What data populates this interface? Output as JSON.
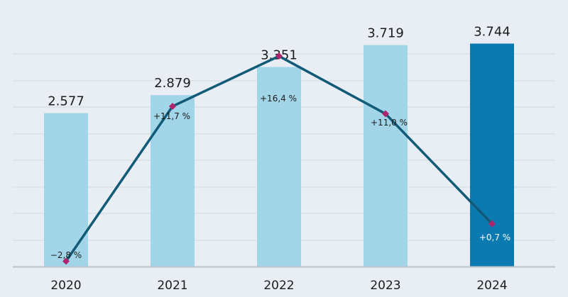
{
  "chart_data": {
    "type": "bar+line",
    "categories": [
      "2020",
      "2021",
      "2022",
      "2023",
      "2024"
    ],
    "bars": {
      "values": [
        2577,
        2879,
        3351,
        3719,
        3744
      ],
      "labels": [
        "2.577",
        "2.879",
        "3.351",
        "3.719",
        "3.744"
      ],
      "ylim": [
        0,
        4000
      ]
    },
    "line": {
      "values": [
        -2.8,
        11.7,
        16.4,
        11.0,
        0.7
      ],
      "labels": [
        "−2,8 %",
        "+11,7 %",
        "+16,4 %",
        "+11,0 %",
        "+0,7 %"
      ],
      "ylim": [
        -3.3,
        19.0
      ]
    },
    "grid": true,
    "colors": {
      "background": "#e8eef3",
      "bar": "#a3d5e8",
      "bar_highlight": "#0a7ab0",
      "line": "#115b78",
      "marker": "#b0246e",
      "gridline": "#cfd8df",
      "axis": "#b9c4cc",
      "text": "#1c1c1c",
      "text_on_dark": "#ffffff"
    }
  }
}
